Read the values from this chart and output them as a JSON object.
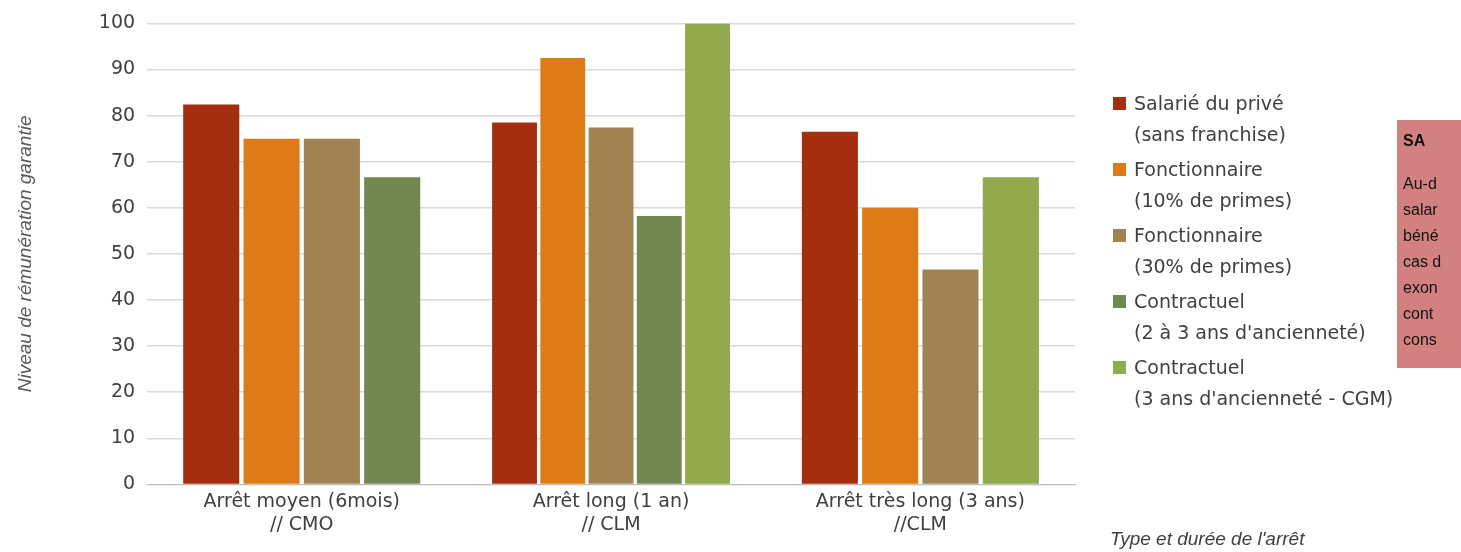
{
  "chart_data": {
    "type": "bar",
    "xlabel": "Type et durée de l'arrêt",
    "ylabel": "Niveau de rémunération garantie",
    "categories": [
      "Arrêt moyen (6mois)\n// CMO",
      "Arrêt long (1 an)\n// CLM",
      "Arrêt très long (3 ans)\n//CLM"
    ],
    "series": [
      {
        "name": "Salarié du privé\n(sans franchise)",
        "color": "#a32e10",
        "values": [
          82.4,
          78.5,
          76.5
        ]
      },
      {
        "name": "Fonctionnaire\n(10% de primes)",
        "color": "#dd7b17",
        "values": [
          75,
          92.5,
          60
        ]
      },
      {
        "name": "Fonctionnaire\n(30% de primes)",
        "color": "#a08350",
        "values": [
          75,
          77.4,
          46.6
        ]
      },
      {
        "name": "Contractuel\n(2 à 3 ans d'ancienneté)",
        "color": "#728752",
        "values": [
          66.6,
          58.2,
          null
        ]
      },
      {
        "name": "Contractuel\n(3 ans d'ancienneté - CGM)",
        "color": "#93aa4c",
        "values": [
          null,
          100,
          66.6
        ]
      }
    ],
    "ylim": [
      0,
      100
    ],
    "yticks": [
      0,
      10,
      20,
      30,
      40,
      50,
      60,
      70,
      80,
      90,
      100
    ],
    "grid": "y",
    "legend": "right",
    "annotations": [
      "SA",
      "Au-d",
      "salar",
      "béné",
      "cas d",
      "exon",
      "cont",
      "cons"
    ]
  }
}
